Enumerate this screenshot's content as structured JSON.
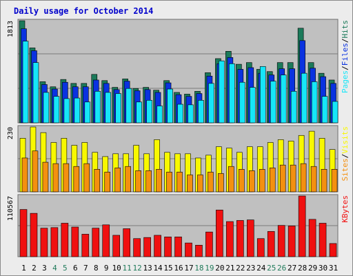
{
  "title": "Daily usage for October 2014",
  "colors": {
    "title": "#0000cc",
    "hits": "#1b7a5a",
    "files": "#0a32e0",
    "pages": "#16e6f8",
    "visits": "#f8f800",
    "sites": "#f49010",
    "kbytes": "#f01010",
    "weekend_day": "#207a5a",
    "weekday": "#000000"
  },
  "chart_data": [
    {
      "type": "bar",
      "name": "hits-files-pages",
      "categories": [
        "1",
        "2",
        "3",
        "4",
        "5",
        "6",
        "7",
        "8",
        "9",
        "10",
        "11",
        "12",
        "13",
        "14",
        "15",
        "16",
        "17",
        "18",
        "19",
        "20",
        "21",
        "22",
        "23",
        "24",
        "25",
        "26",
        "27",
        "28",
        "29",
        "30",
        "31"
      ],
      "ymax_label": "1813",
      "ylim": [
        0,
        1813
      ],
      "legend": [
        {
          "label": "Pages",
          "color_key": "pages"
        },
        {
          "label": "Files",
          "color_key": "files"
        },
        {
          "label": "Hits",
          "color_key": "hits"
        }
      ],
      "separator": "/",
      "series": [
        {
          "name": "Hits",
          "values": [
            1813,
            1330,
            730,
            640,
            770,
            700,
            700,
            860,
            750,
            630,
            780,
            610,
            630,
            580,
            750,
            540,
            510,
            560,
            890,
            1140,
            1270,
            1040,
            1070,
            950,
            910,
            1070,
            1070,
            1680,
            1070,
            880,
            760
          ]
        },
        {
          "name": "Files",
          "values": [
            1670,
            1280,
            680,
            600,
            720,
            640,
            640,
            760,
            700,
            590,
            740,
            570,
            590,
            540,
            710,
            500,
            470,
            520,
            830,
            1050,
            1160,
            950,
            980,
            880,
            850,
            960,
            960,
            1460,
            970,
            820,
            700
          ]
        },
        {
          "name": "Pages",
          "values": [
            1450,
            1070,
            540,
            470,
            430,
            440,
            370,
            560,
            540,
            520,
            610,
            370,
            400,
            300,
            600,
            330,
            320,
            400,
            700,
            1100,
            1050,
            720,
            630,
            1000,
            740,
            850,
            560,
            880,
            730,
            470,
            380
          ]
        }
      ]
    },
    {
      "type": "bar",
      "name": "visits-sites",
      "categories": [
        "1",
        "2",
        "3",
        "4",
        "5",
        "6",
        "7",
        "8",
        "9",
        "10",
        "11",
        "12",
        "13",
        "14",
        "15",
        "16",
        "17",
        "18",
        "19",
        "20",
        "21",
        "22",
        "23",
        "24",
        "25",
        "26",
        "27",
        "28",
        "29",
        "30",
        "31"
      ],
      "ymax_label": "230",
      "ylim": [
        0,
        230
      ],
      "legend": [
        {
          "label": "Sites",
          "color_key": "sites"
        },
        {
          "label": "Visits",
          "color_key": "visits"
        }
      ],
      "separator": "/",
      "series": [
        {
          "name": "Visits",
          "values": [
            190,
            230,
            210,
            175,
            190,
            165,
            175,
            140,
            125,
            135,
            135,
            165,
            135,
            185,
            140,
            135,
            135,
            120,
            130,
            160,
            155,
            140,
            160,
            160,
            175,
            185,
            180,
            200,
            215,
            190,
            150
          ]
        },
        {
          "name": "Sites",
          "values": [
            120,
            145,
            105,
            100,
            100,
            90,
            100,
            80,
            70,
            85,
            90,
            75,
            75,
            80,
            70,
            70,
            60,
            60,
            70,
            65,
            90,
            80,
            75,
            80,
            85,
            95,
            95,
            100,
            90,
            80,
            80
          ]
        }
      ]
    },
    {
      "type": "bar",
      "name": "kbytes",
      "categories": [
        "1",
        "2",
        "3",
        "4",
        "5",
        "6",
        "7",
        "8",
        "9",
        "10",
        "11",
        "12",
        "13",
        "14",
        "15",
        "16",
        "17",
        "18",
        "19",
        "20",
        "21",
        "22",
        "23",
        "24",
        "25",
        "26",
        "27",
        "28",
        "29",
        "30",
        "31"
      ],
      "ymax_label": "110567",
      "ylim": [
        0,
        110567
      ],
      "legend": [
        {
          "label": "KBytes",
          "color_key": "kbytes"
        }
      ],
      "series": [
        {
          "name": "KBytes",
          "values": [
            86000,
            79000,
            52000,
            53000,
            61000,
            54000,
            41000,
            52000,
            58000,
            39000,
            51000,
            33000,
            35000,
            39000,
            36000,
            36000,
            25000,
            21000,
            45000,
            85000,
            64000,
            66000,
            67000,
            33000,
            46000,
            57000,
            56000,
            110567,
            68000,
            61000,
            24000
          ]
        }
      ]
    }
  ],
  "weekend_days": [
    "4",
    "5",
    "11",
    "12",
    "18",
    "19",
    "25",
    "26"
  ]
}
